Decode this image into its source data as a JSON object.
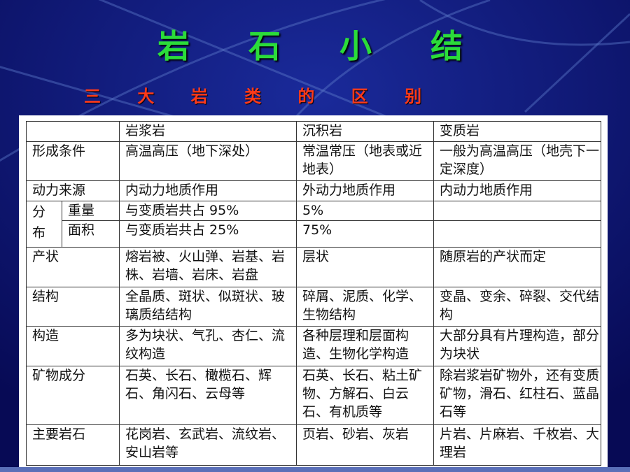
{
  "title": "岩 石 小 结",
  "subtitle": "三 大 岩 类 的 区 别",
  "table": {
    "headers": [
      "",
      "岩浆岩",
      "沉积岩",
      "变质岩"
    ],
    "formation": {
      "label": "形成条件",
      "igneous": "高温高压（地下深处）",
      "sedimentary": "常温常压（地表或近地表）",
      "metamorphic": "一般为高温高压（地壳下一定深度）"
    },
    "energy": {
      "label": "动力来源",
      "igneous": "内动力地质作用",
      "sedimentary": "外动力地质作用",
      "metamorphic": "内动力地质作用"
    },
    "distribution": {
      "label_top": "分",
      "label_bottom": "布",
      "weight": {
        "label": "重量",
        "igneous": "与变质岩共占 95%",
        "sedimentary": "5%",
        "metamorphic": ""
      },
      "area": {
        "label": "面积",
        "igneous": "与变质岩共占 25%",
        "sedimentary": "75%",
        "metamorphic": ""
      }
    },
    "occurrence": {
      "label": "产状",
      "igneous": "熔岩被、火山弹、岩基、岩株、岩墙、岩床、岩盘",
      "sedimentary": "层状",
      "metamorphic": "随原岩的产状而定"
    },
    "texture": {
      "label": "结构",
      "igneous": "全晶质、斑状、似斑状、玻璃质结结构",
      "sedimentary": "碎屑、泥质、化学、生物结构",
      "metamorphic": "变晶、变余、碎裂、交代结构"
    },
    "structure": {
      "label": "构造",
      "igneous": "多为块状、气孔、杏仁、流纹构造",
      "sedimentary": "各种层理和层面构造、生物化学构造",
      "metamorphic": "大部分具有片理构造，部分为块状"
    },
    "minerals": {
      "label": "矿物成分",
      "igneous": "石英、长石、橄榄石、辉石、角闪石、云母等",
      "sedimentary": "石英、长石、粘土矿物、方解石、白云石、有机质等",
      "metamorphic": "除岩浆岩矿物外，还有变质矿物，滑石、红柱石、蓝晶石等"
    },
    "rocks": {
      "label": "主要岩石",
      "igneous": "花岗岩、玄武岩、流纹岩、安山岩等",
      "sedimentary": "页岩、砂岩、灰岩",
      "metamorphic": "片岩、片麻岩、千枚岩、大理岩"
    }
  },
  "colors": {
    "background": "#0b0f6e",
    "title": "#2bdc3a",
    "subtitle": "#ff3a1a"
  }
}
